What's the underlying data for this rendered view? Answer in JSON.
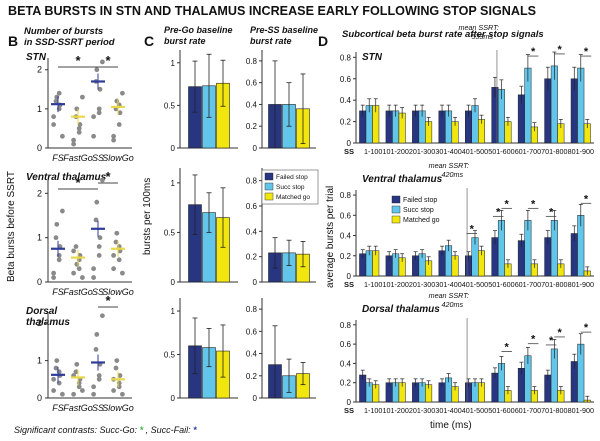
{
  "colors": {
    "failed": "#283581",
    "succ": "#62c5ea",
    "matched": "#f2e60f",
    "dot": "#8a8a8a",
    "mean_blue": "#2f3c9a",
    "mean_yellow": "#e8d84a",
    "sig_green": "#3cb84a",
    "sig_blue": "#2f3c9a"
  },
  "page": {
    "title": "BETA BURSTS IN STN AND THALAMUS INCREASE EARLY FOLLOWING STOP SIGNALS",
    "footnote_prefix": "Significant contrasts: Succ-Go:",
    "footnote_star_green": "*",
    "footnote_mid": ", Succ-Fail:",
    "footnote_star_blue": "*"
  },
  "panel_b": {
    "letter": "B",
    "heading_line1": "Number of bursts",
    "heading_line2": "in SSD-SSRT period",
    "ylabel": "Beta bursts before SSRT",
    "groups": [
      "FS",
      "FastGo",
      "SS",
      "SlowGo"
    ],
    "star": "*",
    "regions": [
      {
        "name": "STN",
        "yticks": [
          "2",
          "1",
          "0"
        ],
        "means": [
          1.12,
          0.8,
          1.7,
          1.05
        ],
        "dots": [
          [
            0.8,
            1.0,
            1.1,
            1.2,
            1.3,
            0.3,
            0.6,
            1.4
          ],
          [
            0.2,
            0.4,
            0.6,
            0.8,
            1.0,
            1.3,
            0.1,
            0.5
          ],
          [
            0.8,
            1.0,
            1.5,
            1.7,
            2.0,
            2.2,
            0.3,
            0.9
          ],
          [
            0.3,
            0.6,
            0.9,
            1.0,
            1.2,
            1.4,
            0.2,
            1.1
          ]
        ]
      },
      {
        "name_line1": "Ventral thalamus",
        "yticks": [
          "2",
          "1",
          "0"
        ],
        "means": [
          0.75,
          0.55,
          1.2,
          0.75
        ],
        "dots": [
          [
            0.2,
            0.5,
            0.8,
            1.0,
            1.3,
            1.6,
            0.1,
            0.6
          ],
          [
            0.2,
            0.3,
            0.6,
            0.8,
            0.4,
            0.1,
            0.7,
            0.5
          ],
          [
            0.3,
            0.6,
            1.0,
            1.4,
            1.8,
            2.3,
            0.1,
            0.8
          ],
          [
            0.3,
            0.5,
            0.7,
            0.9,
            1.1,
            0.2,
            0.6,
            0.8
          ]
        ]
      },
      {
        "name_line1": "Dorsal",
        "name_line2": "thalamus",
        "yticks": [
          "2",
          "1",
          "0"
        ],
        "means": [
          0.62,
          0.55,
          0.95,
          0.5
        ],
        "dots": [
          [
            0.2,
            0.4,
            0.6,
            0.8,
            1.0,
            0.1,
            0.5,
            0.7
          ],
          [
            0.1,
            0.3,
            0.5,
            0.7,
            0.9,
            0.2,
            0.6,
            0.4
          ],
          [
            0.3,
            0.6,
            0.9,
            1.3,
            1.7,
            2.2,
            0.1,
            0.5
          ],
          [
            0.2,
            0.4,
            0.6,
            0.8,
            1.0,
            0.1,
            0.5,
            0.3
          ]
        ]
      }
    ]
  },
  "panel_c": {
    "letter": "C",
    "heading_left_line1": "Pre-Go baseline",
    "heading_left_line2": "burst rate",
    "heading_right_line1": "Pre-SS baseline",
    "heading_right_line2": "burst rate",
    "ylabel": "bursts per 100ms",
    "legend": [
      "Failed stop",
      "Succ stop",
      "Matched go"
    ],
    "left_ticks": [
      "1",
      "0.5",
      "0"
    ],
    "right_ticks": [
      "0.8",
      "0.6",
      "0.4",
      "0.2",
      "0"
    ],
    "left_ymax": 1.15,
    "right_ymax": 0.9,
    "regions": [
      {
        "pre_go": [
          {
            "value": 0.72,
            "err": 0.3
          },
          {
            "value": 0.73,
            "err": 0.37
          },
          {
            "value": 0.76,
            "err": 0.27
          }
        ],
        "pre_ss": [
          {
            "value": 0.4,
            "err": 0.4
          },
          {
            "value": 0.4,
            "err": 0.2
          },
          {
            "value": 0.36,
            "err": 0.32
          }
        ]
      },
      {
        "pre_go": [
          {
            "value": 0.78,
            "err": 0.3
          },
          {
            "value": 0.7,
            "err": 0.2
          },
          {
            "value": 0.65,
            "err": 0.3
          }
        ],
        "pre_ss": [
          {
            "value": 0.23,
            "err": 0.12
          },
          {
            "value": 0.23,
            "err": 0.1
          },
          {
            "value": 0.22,
            "err": 0.1
          }
        ]
      },
      {
        "pre_go": [
          {
            "value": 0.6,
            "err": 0.32
          },
          {
            "value": 0.58,
            "err": 0.22
          },
          {
            "value": 0.54,
            "err": 0.3
          }
        ],
        "pre_ss": [
          {
            "value": 0.3,
            "err": 0.35
          },
          {
            "value": 0.2,
            "err": 0.15
          },
          {
            "value": 0.22,
            "err": 0.1
          }
        ]
      }
    ]
  },
  "panel_d": {
    "letter": "D",
    "heading": "Subcortical beta burst rate after stop signals",
    "ylabel": "average bursts per trial",
    "xlabel": "time (ms)",
    "ss_label": "SS",
    "bins": [
      "1-100",
      "101-200",
      "201-300",
      "301-400",
      "401-500",
      "501-600",
      "601-700",
      "701-800",
      "801-900"
    ],
    "yticks": [
      "0.8",
      "0.6",
      "0.4",
      "0.2",
      "0"
    ],
    "ymax": 0.85,
    "legend": [
      "Failed stop",
      "Succ stop",
      "Matched go"
    ],
    "star": "*",
    "regions": [
      {
        "name": "STN",
        "ssrt_line1": "mean SSRT:",
        "ssrt_line2": "533ms",
        "ssrt_bin": 5.33,
        "failed": [
          0.3,
          0.3,
          0.3,
          0.3,
          0.3,
          0.52,
          0.45,
          0.6,
          0.6
        ],
        "succ": [
          0.35,
          0.3,
          0.3,
          0.3,
          0.35,
          0.5,
          0.7,
          0.72,
          0.7
        ],
        "matched": [
          0.35,
          0.28,
          0.2,
          0.2,
          0.22,
          0.2,
          0.15,
          0.18,
          0.18
        ],
        "sig_green": [
          6,
          7,
          8
        ],
        "sig_blue": []
      },
      {
        "name": "Ventral thalamus",
        "ssrt_line1": "mean SSRT:",
        "ssrt_line2": "420ms",
        "ssrt_bin": 4.2,
        "failed": [
          0.22,
          0.2,
          0.2,
          0.25,
          0.2,
          0.38,
          0.35,
          0.38,
          0.42
        ],
        "succ": [
          0.25,
          0.22,
          0.22,
          0.3,
          0.38,
          0.55,
          0.55,
          0.55,
          0.6
        ],
        "matched": [
          0.25,
          0.18,
          0.15,
          0.2,
          0.25,
          0.12,
          0.12,
          0.12,
          0.05
        ],
        "sig_green": [
          5,
          6,
          8
        ],
        "sig_blue": [
          4,
          5,
          7
        ]
      },
      {
        "name": "Dorsal thalamus",
        "ssrt_line1": "mean SSRT:",
        "ssrt_line2": "420ms",
        "ssrt_bin": 4.2,
        "failed": [
          0.28,
          0.2,
          0.2,
          0.2,
          0.2,
          0.3,
          0.35,
          0.28,
          0.42
        ],
        "succ": [
          0.2,
          0.2,
          0.2,
          0.25,
          0.2,
          0.4,
          0.48,
          0.55,
          0.6
        ],
        "matched": [
          0.18,
          0.2,
          0.18,
          0.16,
          0.2,
          0.12,
          0.12,
          0.12,
          0.02
        ],
        "sig_green": [
          5,
          6,
          7,
          8
        ],
        "sig_blue": [
          7
        ]
      }
    ]
  }
}
